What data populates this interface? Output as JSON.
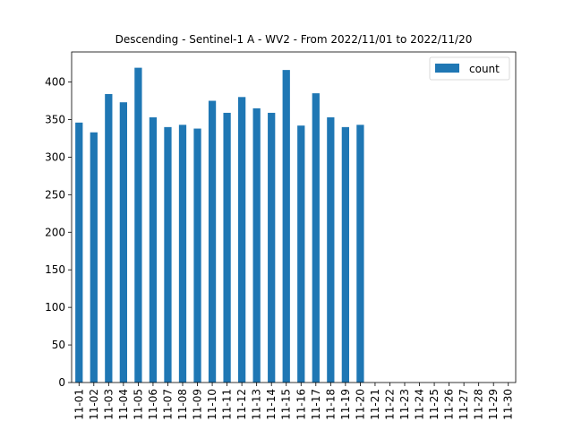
{
  "chart_data": {
    "type": "bar",
    "title": "Descending - Sentinel-1 A - WV2 - From 2022/11/01 to 2022/11/20",
    "xlabel": "",
    "ylabel": "",
    "ylim": [
      0,
      440
    ],
    "yticks": [
      0,
      50,
      100,
      150,
      200,
      250,
      300,
      350,
      400
    ],
    "categories": [
      "11-01",
      "11-02",
      "11-03",
      "11-04",
      "11-05",
      "11-06",
      "11-07",
      "11-08",
      "11-09",
      "11-10",
      "11-11",
      "11-12",
      "11-13",
      "11-14",
      "11-15",
      "11-16",
      "11-17",
      "11-18",
      "11-19",
      "11-20",
      "11-21",
      "11-22",
      "11-23",
      "11-24",
      "11-25",
      "11-26",
      "11-27",
      "11-28",
      "11-29",
      "11-30"
    ],
    "series": [
      {
        "name": "count",
        "color": "#1f77b4",
        "values": [
          346,
          333,
          384,
          373,
          419,
          353,
          340,
          343,
          338,
          375,
          359,
          380,
          365,
          359,
          416,
          342,
          385,
          353,
          340,
          343,
          null,
          null,
          null,
          null,
          null,
          null,
          null,
          null,
          null,
          null
        ]
      }
    ],
    "legend": "top-right",
    "grid": false
  }
}
